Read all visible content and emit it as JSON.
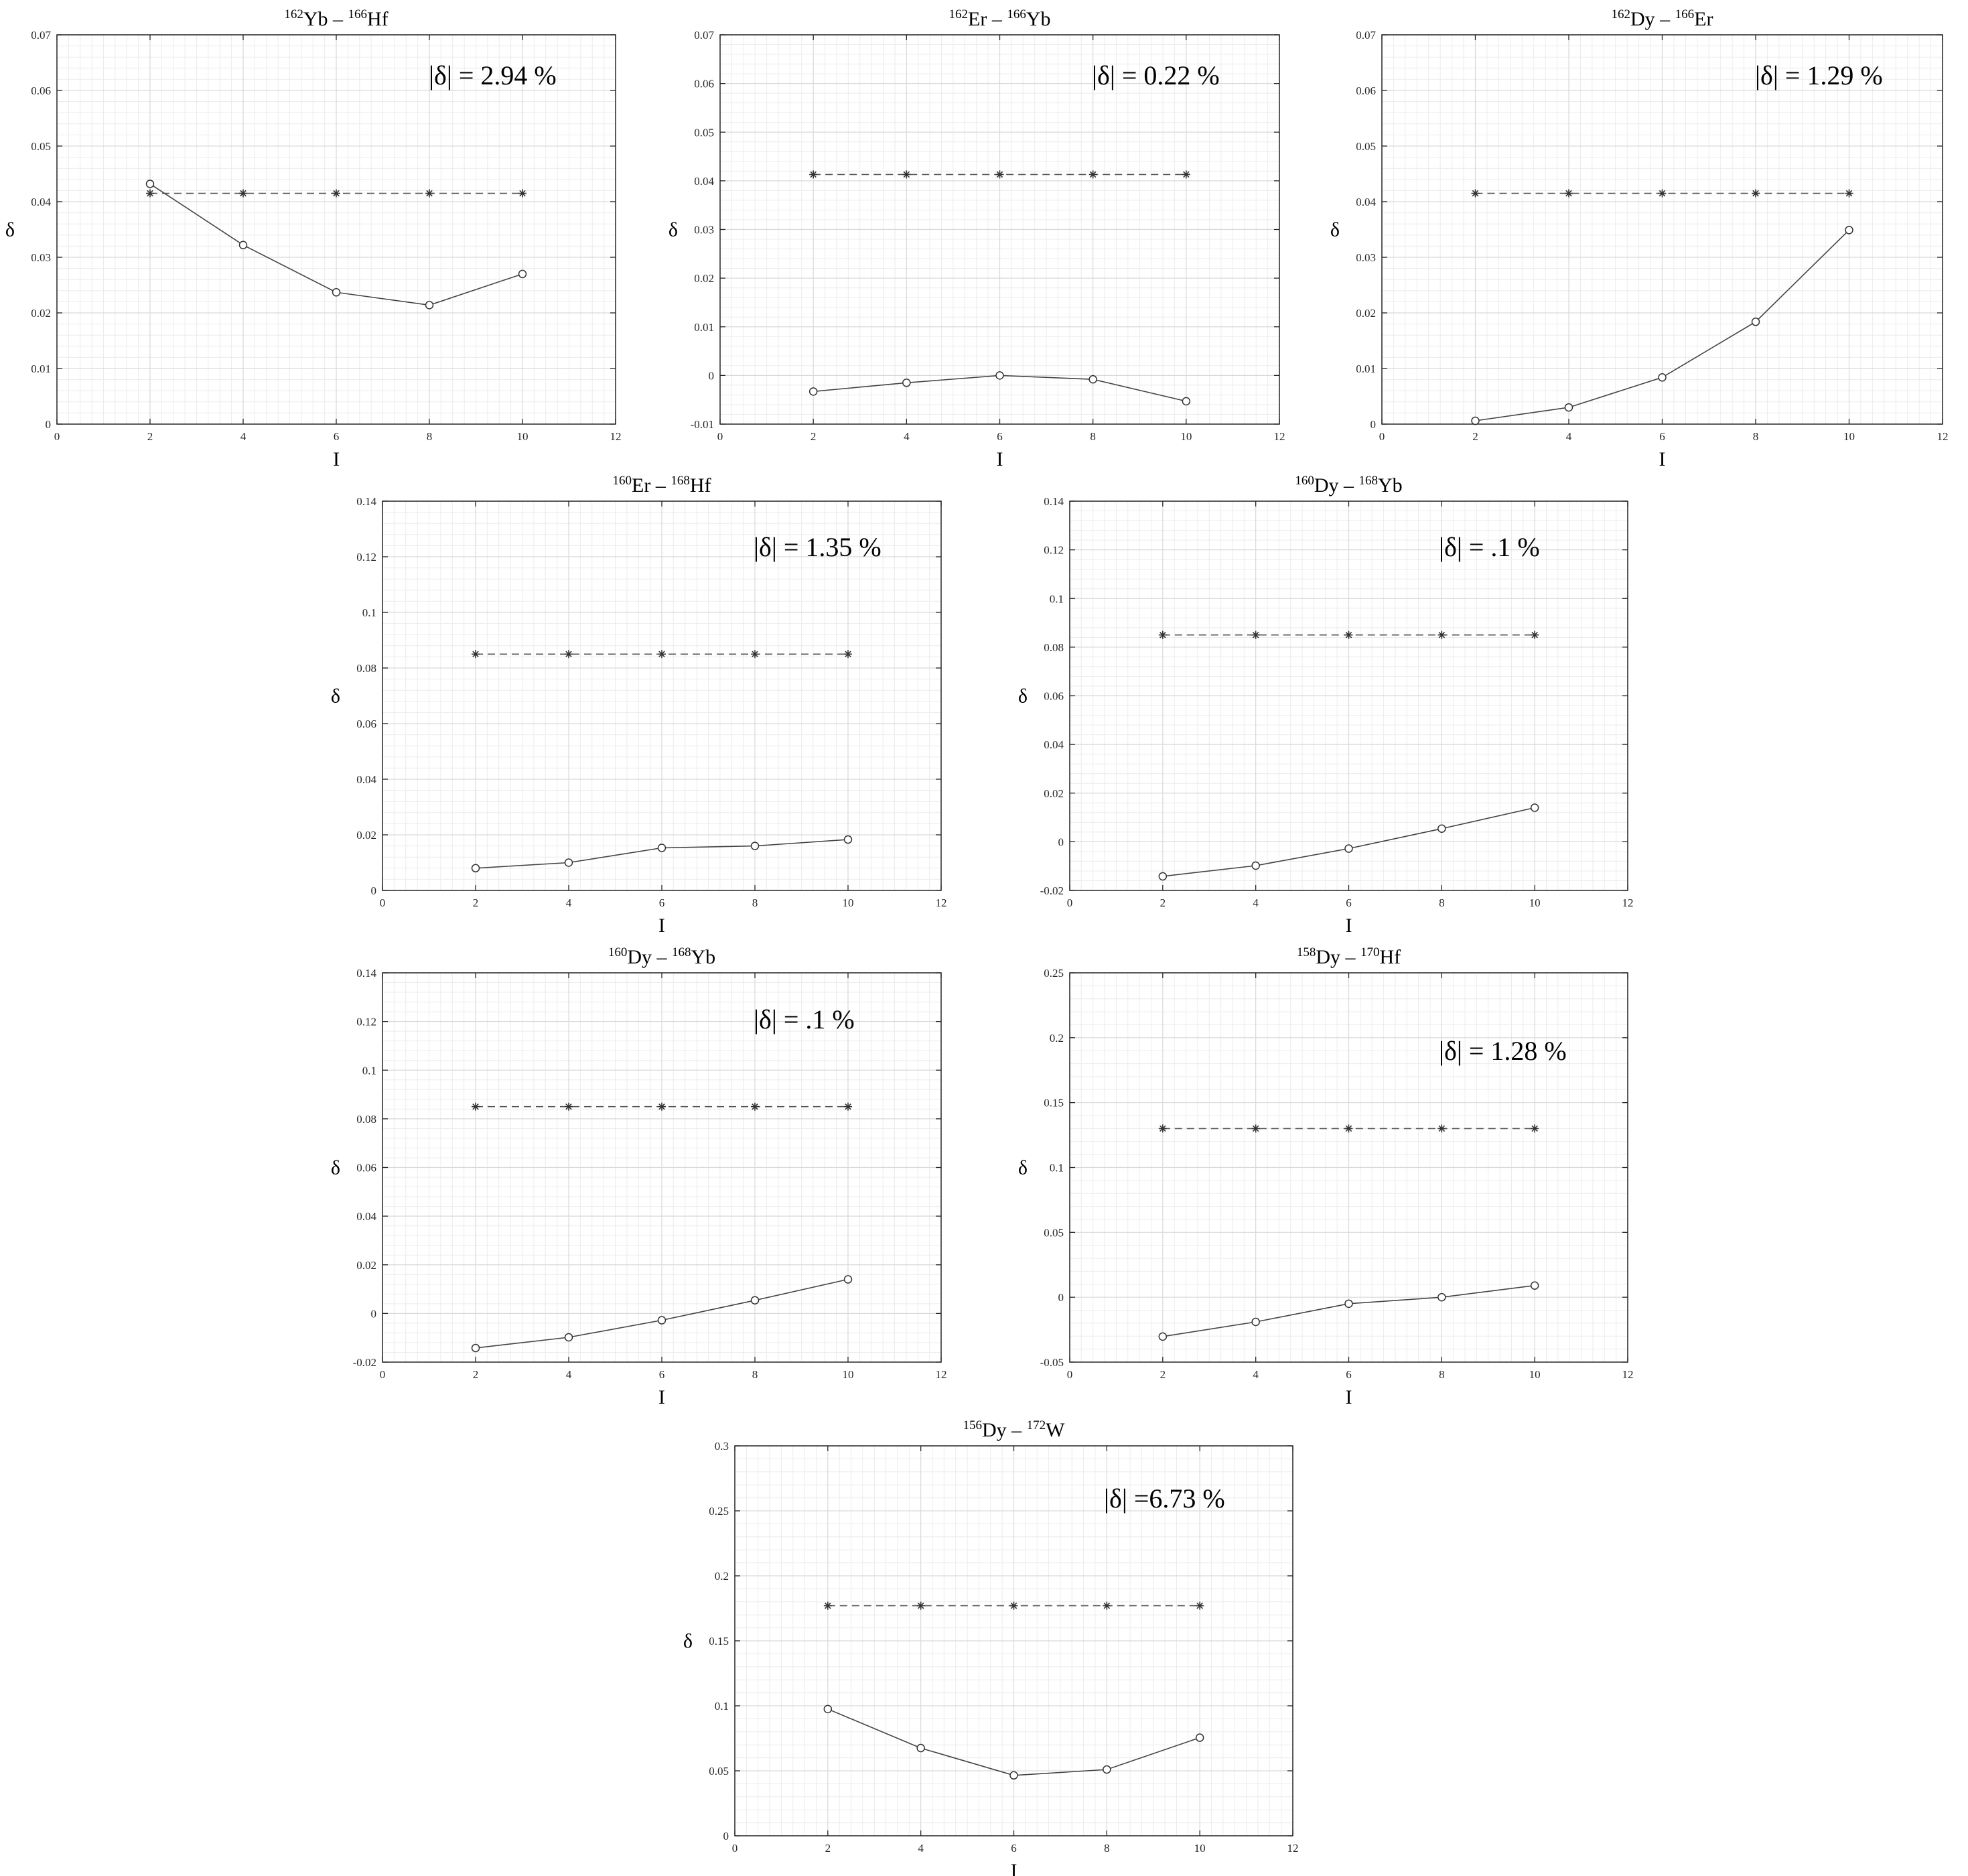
{
  "figure": {
    "y_label": "δ",
    "x_label": "I"
  },
  "chart_data": [
    {
      "type": "line",
      "title": "162Yb – 166Hf",
      "title_parts": [
        {
          "sup": "162",
          "text": "Yb – "
        },
        {
          "sup": "166",
          "text": "Hf"
        }
      ],
      "annotation": "|δ| = 2.94 %",
      "xlabel": "I",
      "ylabel": "δ",
      "xlim": [
        0,
        12
      ],
      "ylim": [
        0,
        0.07
      ],
      "xticks": [
        "0",
        "2",
        "4",
        "6",
        "8",
        "10",
        "12"
      ],
      "yticks": [
        "0",
        "0.01",
        "0.02",
        "0.03",
        "0.04",
        "0.05",
        "0.06",
        "0.07"
      ],
      "grid": true,
      "series": [
        {
          "style": "dashed-star",
          "x": [
            2,
            4,
            6,
            8,
            10
          ],
          "values": [
            0.0415,
            0.0415,
            0.0415,
            0.0415,
            0.0415
          ]
        },
        {
          "style": "solid-circle",
          "x": [
            2,
            4,
            6,
            8,
            10
          ],
          "values": [
            0.0432,
            0.0322,
            0.0237,
            0.0214,
            0.027
          ]
        }
      ]
    },
    {
      "type": "line",
      "title": "162Er – 166Yb",
      "title_parts": [
        {
          "sup": "162",
          "text": "Er – "
        },
        {
          "sup": "166",
          "text": "Yb"
        }
      ],
      "annotation": "|δ| = 0.22 %",
      "xlabel": "I",
      "ylabel": "δ",
      "xlim": [
        0,
        12
      ],
      "ylim": [
        -0.01,
        0.07
      ],
      "xticks": [
        "0",
        "2",
        "4",
        "6",
        "8",
        "10",
        "12"
      ],
      "yticks": [
        "-0.01",
        "0",
        "0.01",
        "0.02",
        "0.03",
        "0.04",
        "0.05",
        "0.06",
        "0.07"
      ],
      "grid": true,
      "series": [
        {
          "style": "dashed-star",
          "x": [
            2,
            4,
            6,
            8,
            10
          ],
          "values": [
            0.0413,
            0.0413,
            0.0413,
            0.0413,
            0.0413
          ]
        },
        {
          "style": "solid-circle",
          "x": [
            2,
            4,
            6,
            8,
            10
          ],
          "values": [
            -0.0033,
            -0.0015,
            0.0,
            -0.0008,
            -0.0053
          ]
        }
      ]
    },
    {
      "type": "line",
      "title": "162Dy – 166Er",
      "title_parts": [
        {
          "sup": "162",
          "text": "Dy – "
        },
        {
          "sup": "166",
          "text": "Er"
        }
      ],
      "annotation": "|δ| = 1.29 %",
      "xlabel": "I",
      "ylabel": "δ",
      "xlim": [
        0,
        12
      ],
      "ylim": [
        0,
        0.07
      ],
      "xticks": [
        "0",
        "2",
        "4",
        "6",
        "8",
        "10",
        "12"
      ],
      "yticks": [
        "0",
        "0.01",
        "0.02",
        "0.03",
        "0.04",
        "0.05",
        "0.06",
        "0.07"
      ],
      "grid": true,
      "series": [
        {
          "style": "dashed-star",
          "x": [
            2,
            4,
            6,
            8,
            10
          ],
          "values": [
            0.0415,
            0.0415,
            0.0415,
            0.0415,
            0.0415
          ]
        },
        {
          "style": "solid-circle",
          "x": [
            2,
            4,
            6,
            8,
            10
          ],
          "values": [
            0.0006,
            0.003,
            0.0084,
            0.0184,
            0.0349
          ]
        }
      ]
    },
    {
      "type": "line",
      "title": "160Er – 168Hf",
      "title_parts": [
        {
          "sup": "160",
          "text": "Er – "
        },
        {
          "sup": "168",
          "text": "Hf"
        }
      ],
      "annotation": "|δ| = 1.35 %",
      "xlabel": "I",
      "ylabel": "δ",
      "xlim": [
        0,
        12
      ],
      "ylim": [
        0,
        0.14
      ],
      "xticks": [
        "0",
        "2",
        "4",
        "6",
        "8",
        "10",
        "12"
      ],
      "yticks": [
        "0",
        "0.02",
        "0.04",
        "0.06",
        "0.08",
        "0.1",
        "0.12",
        "0.14"
      ],
      "grid": true,
      "series": [
        {
          "style": "dashed-star",
          "x": [
            2,
            4,
            6,
            8,
            10
          ],
          "values": [
            0.085,
            0.085,
            0.085,
            0.085,
            0.085
          ]
        },
        {
          "style": "solid-circle",
          "x": [
            2,
            4,
            6,
            8,
            10
          ],
          "values": [
            0.008,
            0.01,
            0.0153,
            0.016,
            0.0183
          ]
        }
      ]
    },
    {
      "type": "line",
      "title": "160Dy – 168Yb",
      "title_parts": [
        {
          "sup": "160",
          "text": "Dy – "
        },
        {
          "sup": "168",
          "text": "Yb"
        }
      ],
      "annotation": "|δ| = .1 %",
      "xlabel": "I",
      "ylabel": "δ",
      "xlim": [
        0,
        12
      ],
      "ylim": [
        -0.02,
        0.14
      ],
      "xticks": [
        "0",
        "2",
        "4",
        "6",
        "8",
        "10",
        "12"
      ],
      "yticks": [
        "-0.02",
        "0",
        "0.02",
        "0.04",
        "0.06",
        "0.08",
        "0.1",
        "0.12",
        "0.14"
      ],
      "grid": true,
      "series": [
        {
          "style": "dashed-star",
          "x": [
            2,
            4,
            6,
            8,
            10
          ],
          "values": [
            0.085,
            0.085,
            0.085,
            0.085,
            0.085
          ]
        },
        {
          "style": "solid-circle",
          "x": [
            2,
            4,
            6,
            8,
            10
          ],
          "values": [
            -0.0142,
            -0.0098,
            -0.0028,
            0.0054,
            0.014
          ]
        }
      ]
    },
    {
      "type": "line",
      "title": "160Dy – 168Yb",
      "title_parts": [
        {
          "sup": "160",
          "text": "Dy – "
        },
        {
          "sup": "168",
          "text": "Yb"
        }
      ],
      "annotation": "|δ| = .1 %",
      "xlabel": "I",
      "ylabel": "δ",
      "xlim": [
        0,
        12
      ],
      "ylim": [
        -0.02,
        0.14
      ],
      "xticks": [
        "0",
        "2",
        "4",
        "6",
        "8",
        "10",
        "12"
      ],
      "yticks": [
        "-0.02",
        "0",
        "0.02",
        "0.04",
        "0.06",
        "0.08",
        "0.1",
        "0.12",
        "0.14"
      ],
      "grid": true,
      "series": [
        {
          "style": "dashed-star",
          "x": [
            2,
            4,
            6,
            8,
            10
          ],
          "values": [
            0.085,
            0.085,
            0.085,
            0.085,
            0.085
          ]
        },
        {
          "style": "solid-circle",
          "x": [
            2,
            4,
            6,
            8,
            10
          ],
          "values": [
            -0.0142,
            -0.0098,
            -0.0028,
            0.0054,
            0.014
          ]
        }
      ]
    },
    {
      "type": "line",
      "title": "158Dy – 170Hf",
      "title_parts": [
        {
          "sup": "158",
          "text": "Dy – "
        },
        {
          "sup": "170",
          "text": "Hf"
        }
      ],
      "annotation": "|δ| = 1.28 %",
      "xlabel": "I",
      "ylabel": "δ",
      "xlim": [
        0,
        12
      ],
      "ylim": [
        -0.05,
        0.25
      ],
      "xticks": [
        "0",
        "2",
        "4",
        "6",
        "8",
        "10",
        "12"
      ],
      "yticks": [
        "-0.05",
        "0",
        "0.05",
        "0.1",
        "0.15",
        "0.2",
        "0.25"
      ],
      "grid": true,
      "series": [
        {
          "style": "dashed-star",
          "x": [
            2,
            4,
            6,
            8,
            10
          ],
          "values": [
            0.13,
            0.13,
            0.13,
            0.13,
            0.13
          ]
        },
        {
          "style": "solid-circle",
          "x": [
            2,
            4,
            6,
            8,
            10
          ],
          "values": [
            -0.0303,
            -0.019,
            -0.005,
            0.0,
            0.009
          ]
        }
      ]
    },
    {
      "type": "line",
      "title": "156Dy – 172W",
      "title_parts": [
        {
          "sup": "156",
          "text": "Dy – "
        },
        {
          "sup": "172",
          "text": "W"
        }
      ],
      "annotation": "|δ| =6.73 %",
      "xlabel": "I",
      "ylabel": "δ",
      "xlim": [
        0,
        12
      ],
      "ylim": [
        0,
        0.3
      ],
      "xticks": [
        "0",
        "2",
        "4",
        "6",
        "8",
        "10",
        "12"
      ],
      "yticks": [
        "0",
        "0.05",
        "0.1",
        "0.15",
        "0.2",
        "0.25",
        "0.3"
      ],
      "grid": true,
      "series": [
        {
          "style": "dashed-star",
          "x": [
            2,
            4,
            6,
            8,
            10
          ],
          "values": [
            0.177,
            0.177,
            0.177,
            0.177,
            0.177
          ]
        },
        {
          "style": "solid-circle",
          "x": [
            2,
            4,
            6,
            8,
            10
          ],
          "values": [
            0.0975,
            0.0675,
            0.0465,
            0.051,
            0.0755
          ]
        }
      ]
    }
  ]
}
